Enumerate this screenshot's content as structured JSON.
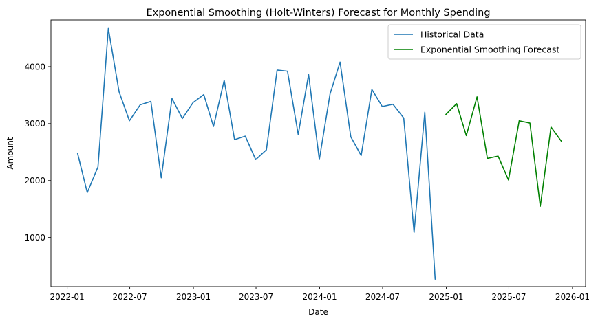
{
  "chart_data": {
    "type": "line",
    "title": "Exponential Smoothing (Holt-Winters) Forecast for Monthly Spending",
    "xlabel": "Date",
    "ylabel": "Amount",
    "xlim": [
      "2021-11-15",
      "2026-02-08"
    ],
    "ylim": [
      140,
      4820
    ],
    "x_ticks": [
      {
        "date": "2022-01-01",
        "label": "2022-01"
      },
      {
        "date": "2022-07-01",
        "label": "2022-07"
      },
      {
        "date": "2023-01-01",
        "label": "2023-01"
      },
      {
        "date": "2023-07-01",
        "label": "2023-07"
      },
      {
        "date": "2024-01-01",
        "label": "2024-01"
      },
      {
        "date": "2024-07-01",
        "label": "2024-07"
      },
      {
        "date": "2025-01-01",
        "label": "2025-01"
      },
      {
        "date": "2025-07-01",
        "label": "2025-07"
      },
      {
        "date": "2026-01-01",
        "label": "2026-01"
      }
    ],
    "y_ticks": [
      1000,
      2000,
      3000,
      4000
    ],
    "grid": false,
    "legend_position": "top-right",
    "series": [
      {
        "name": "Historical Data",
        "color": "#1f77b4",
        "x": [
          "2022-01-31",
          "2022-02-28",
          "2022-03-31",
          "2022-04-30",
          "2022-05-31",
          "2022-06-30",
          "2022-07-31",
          "2022-08-31",
          "2022-09-30",
          "2022-10-31",
          "2022-11-30",
          "2022-12-31",
          "2023-01-31",
          "2023-02-28",
          "2023-03-31",
          "2023-04-30",
          "2023-05-31",
          "2023-06-30",
          "2023-07-31",
          "2023-08-31",
          "2023-09-30",
          "2023-10-31",
          "2023-11-30",
          "2023-12-31",
          "2024-01-31",
          "2024-02-29",
          "2024-03-31",
          "2024-04-30",
          "2024-05-31",
          "2024-06-30",
          "2024-07-31",
          "2024-08-31",
          "2024-09-30",
          "2024-10-31",
          "2024-11-30"
        ],
        "y": [
          2480,
          1790,
          2240,
          4670,
          3560,
          3050,
          3330,
          3390,
          2050,
          3440,
          3090,
          3370,
          3510,
          2950,
          3760,
          2720,
          2780,
          2370,
          2540,
          3940,
          3920,
          2810,
          3860,
          2370,
          3520,
          4080,
          2770,
          2440,
          3600,
          3300,
          3340,
          3100,
          1090,
          3200,
          270
        ]
      },
      {
        "name": "Exponential Smoothing Forecast",
        "color": "#008000",
        "x": [
          "2024-12-31",
          "2025-01-31",
          "2025-02-28",
          "2025-03-31",
          "2025-04-30",
          "2025-05-31",
          "2025-06-30",
          "2025-07-31",
          "2025-08-31",
          "2025-09-30",
          "2025-10-31",
          "2025-11-30"
        ],
        "y": [
          3160,
          3350,
          2790,
          3470,
          2390,
          2430,
          2010,
          3050,
          3010,
          1550,
          2940,
          2690
        ]
      }
    ]
  }
}
